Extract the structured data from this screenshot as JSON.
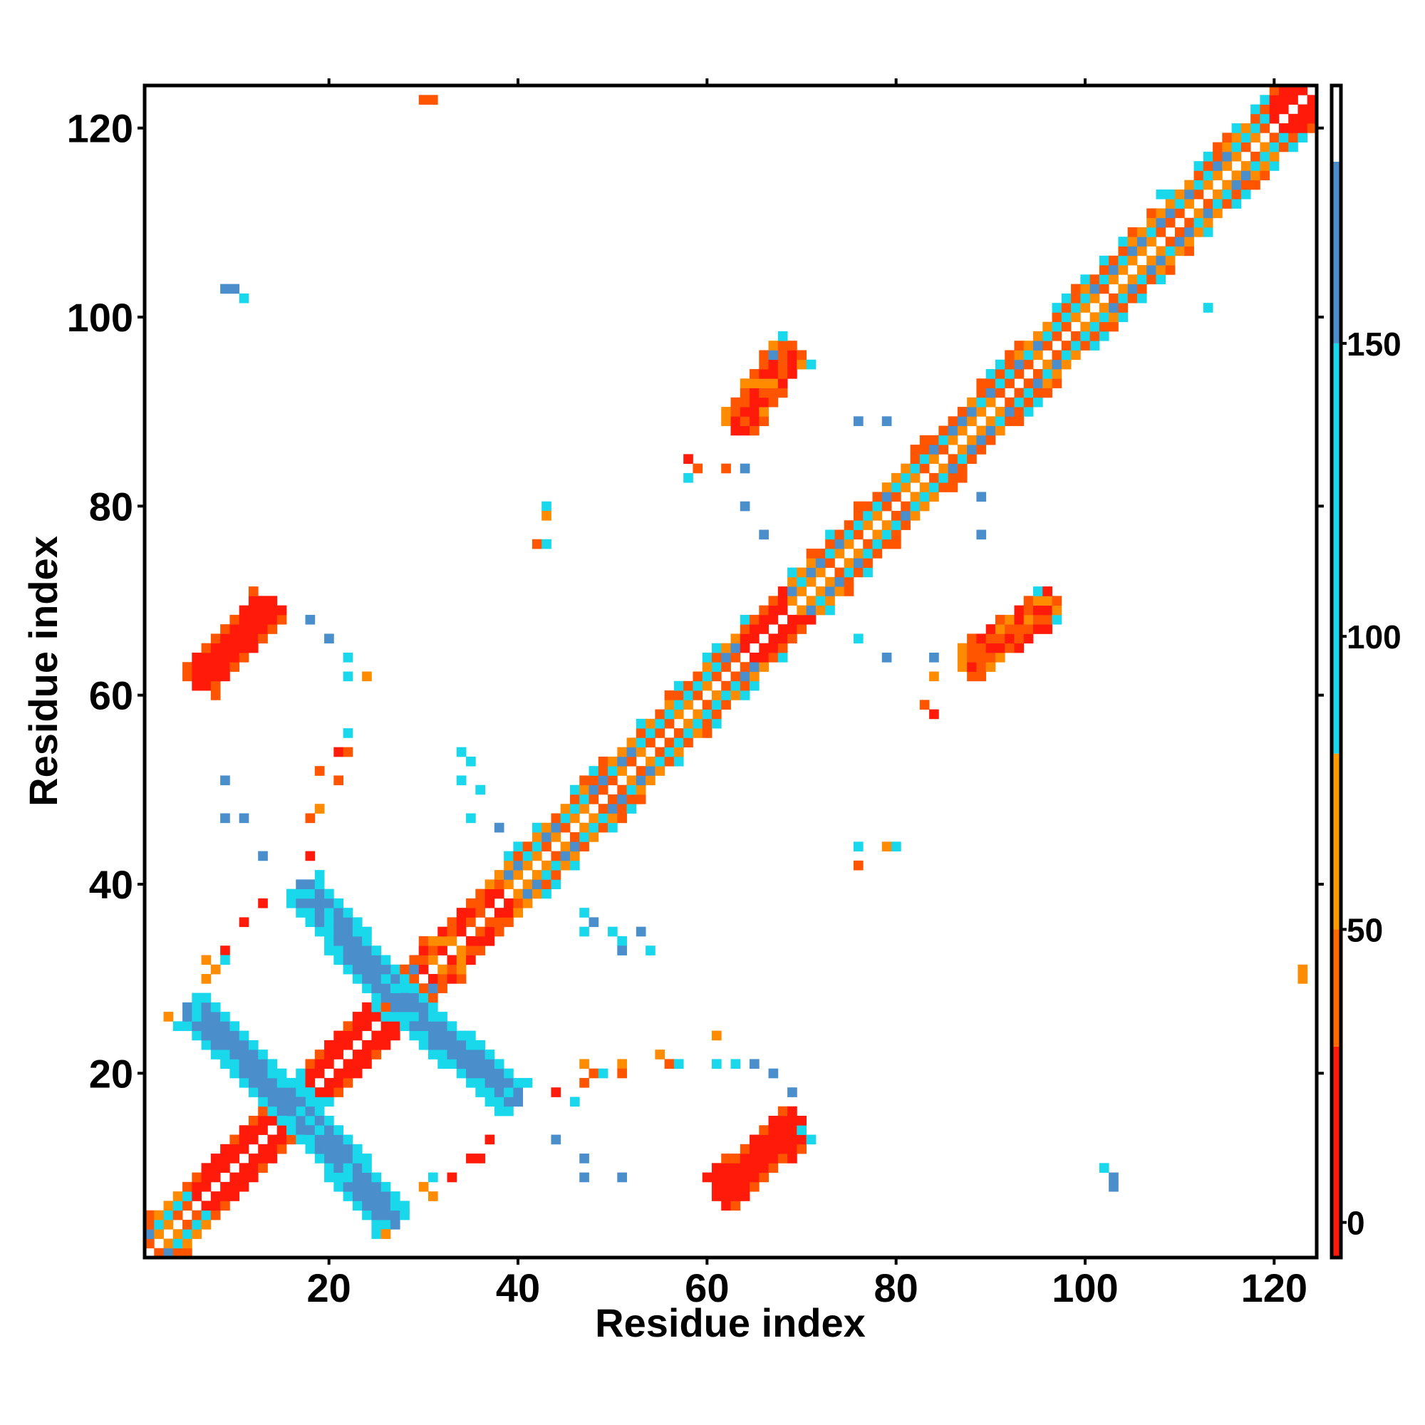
{
  "chart_data": {
    "type": "heatmap",
    "title": "",
    "xlabel": "Residue index",
    "ylabel": "Residue index",
    "xlim": [
      0.5,
      124.5
    ],
    "ylim": [
      0.5,
      124.5
    ],
    "x_ticks": [
      20,
      40,
      60,
      80,
      100,
      120
    ],
    "y_ticks": [
      20,
      40,
      60,
      80,
      100,
      120
    ],
    "colorbar": {
      "ticks": [
        0,
        50,
        100,
        150
      ],
      "range": [
        -6,
        194
      ],
      "bands": [
        {
          "from": -6,
          "to": 30,
          "color": "#ff1a0a"
        },
        {
          "from": 30,
          "to": 50,
          "color": "#ff6a00"
        },
        {
          "from": 50,
          "to": 80,
          "color": "#ff9a00"
        },
        {
          "from": 80,
          "to": 150,
          "color": "#19d8ec"
        },
        {
          "from": 150,
          "to": 181,
          "color": "#4a8fcc"
        },
        {
          "from": 181,
          "to": 194,
          "color": "#ffffff"
        }
      ]
    },
    "colors": {
      "red": "#ff1a0a",
      "red_orange": "#ff5500",
      "orange": "#ff8c00",
      "cyan": "#19d8ec",
      "steel_blue": "#4a8fcc"
    },
    "diagonal_segments": [
      {
        "x": [
          1,
          6
        ],
        "pattern": "cyan_orange"
      },
      {
        "x": [
          6,
          16
        ],
        "pattern": "red"
      },
      {
        "x": [
          16,
          18
        ],
        "pattern": "cyan"
      },
      {
        "x": [
          18,
          26
        ],
        "pattern": "red"
      },
      {
        "x": [
          26,
          30
        ],
        "pattern": "cyan_orange"
      },
      {
        "x": [
          30,
          39
        ],
        "pattern": "red_orange"
      },
      {
        "x": [
          39,
          58
        ],
        "pattern": "cyan_orange"
      },
      {
        "x": [
          58,
          64
        ],
        "pattern": "cyan_orange"
      },
      {
        "x": [
          64,
          69
        ],
        "pattern": "red"
      },
      {
        "x": [
          69,
          89
        ],
        "pattern": "cyan_orange"
      },
      {
        "x": [
          89,
          120
        ],
        "pattern": "cyan_orange"
      },
      {
        "x": [
          120,
          124
        ],
        "pattern": "red"
      }
    ],
    "antidiagonal_bands": [
      {
        "from": [
          5,
          27
        ],
        "to": [
          17,
          16
        ],
        "color": "steel_blue",
        "width": 2.2
      },
      {
        "from": [
          17,
          16
        ],
        "to": [
          27,
          4
        ],
        "color": "steel_blue",
        "width": 2.2
      },
      {
        "from": [
          17,
          40
        ],
        "to": [
          27,
          28
        ],
        "color": "steel_blue",
        "width": 2.2
      },
      {
        "from": [
          27,
          28
        ],
        "to": [
          40,
          17
        ],
        "color": "steel_blue",
        "width": 2.2
      }
    ],
    "parallel_bands": [
      {
        "from": [
          6,
          61
        ],
        "to": [
          14,
          70
        ],
        "color": "red",
        "width": 2.2
      },
      {
        "from": [
          61,
          7
        ],
        "to": [
          70,
          15
        ],
        "color": "red",
        "width": 2.4
      },
      {
        "from": [
          63,
          88
        ],
        "to": [
          69,
          97
        ],
        "color": "red_orange",
        "width": 2.0
      },
      {
        "from": [
          87,
          63
        ],
        "to": [
          97,
          70
        ],
        "color": "red_orange",
        "width": 2.0
      }
    ],
    "scattered_cells": [
      {
        "x": 30,
        "y": 123,
        "color": "red_orange"
      },
      {
        "x": 31,
        "y": 123,
        "color": "red_orange"
      },
      {
        "x": 9,
        "y": 103,
        "color": "steel_blue"
      },
      {
        "x": 10,
        "y": 103,
        "color": "steel_blue"
      },
      {
        "x": 11,
        "y": 102,
        "color": "cyan"
      },
      {
        "x": 18,
        "y": 68,
        "color": "steel_blue"
      },
      {
        "x": 20,
        "y": 66,
        "color": "steel_blue"
      },
      {
        "x": 22,
        "y": 64,
        "color": "cyan"
      },
      {
        "x": 22,
        "y": 62,
        "color": "cyan"
      },
      {
        "x": 24,
        "y": 62,
        "color": "orange"
      },
      {
        "x": 22,
        "y": 56,
        "color": "cyan"
      },
      {
        "x": 21,
        "y": 54,
        "color": "red"
      },
      {
        "x": 22,
        "y": 54,
        "color": "red_orange"
      },
      {
        "x": 19,
        "y": 52,
        "color": "red_orange"
      },
      {
        "x": 21,
        "y": 51,
        "color": "red_orange"
      },
      {
        "x": 19,
        "y": 48,
        "color": "orange"
      },
      {
        "x": 18,
        "y": 47,
        "color": "red_orange"
      },
      {
        "x": 9,
        "y": 51,
        "color": "steel_blue"
      },
      {
        "x": 9,
        "y": 47,
        "color": "steel_blue"
      },
      {
        "x": 11,
        "y": 47,
        "color": "steel_blue"
      },
      {
        "x": 13,
        "y": 43,
        "color": "steel_blue"
      },
      {
        "x": 18,
        "y": 43,
        "color": "red"
      },
      {
        "x": 13,
        "y": 38,
        "color": "red"
      },
      {
        "x": 11,
        "y": 36,
        "color": "red"
      },
      {
        "x": 9,
        "y": 33,
        "color": "red"
      },
      {
        "x": 7,
        "y": 32,
        "color": "orange"
      },
      {
        "x": 8,
        "y": 31,
        "color": "orange"
      },
      {
        "x": 9,
        "y": 32,
        "color": "cyan"
      },
      {
        "x": 7,
        "y": 30,
        "color": "orange"
      },
      {
        "x": 3,
        "y": 26,
        "color": "orange"
      },
      {
        "x": 26,
        "y": 3,
        "color": "orange"
      },
      {
        "x": 34,
        "y": 54,
        "color": "cyan"
      },
      {
        "x": 35,
        "y": 53,
        "color": "cyan"
      },
      {
        "x": 34,
        "y": 51,
        "color": "cyan"
      },
      {
        "x": 36,
        "y": 50,
        "color": "cyan"
      },
      {
        "x": 35,
        "y": 47,
        "color": "cyan"
      },
      {
        "x": 38,
        "y": 46,
        "color": "steel_blue"
      },
      {
        "x": 43,
        "y": 80,
        "color": "cyan"
      },
      {
        "x": 43,
        "y": 79,
        "color": "orange"
      },
      {
        "x": 42,
        "y": 76,
        "color": "red_orange"
      },
      {
        "x": 43,
        "y": 76,
        "color": "cyan"
      },
      {
        "x": 58,
        "y": 85,
        "color": "red"
      },
      {
        "x": 59,
        "y": 84,
        "color": "red_orange"
      },
      {
        "x": 62,
        "y": 84,
        "color": "red_orange"
      },
      {
        "x": 64,
        "y": 84,
        "color": "steel_blue"
      },
      {
        "x": 58,
        "y": 83,
        "color": "cyan"
      },
      {
        "x": 64,
        "y": 80,
        "color": "steel_blue"
      },
      {
        "x": 66,
        "y": 77,
        "color": "steel_blue"
      },
      {
        "x": 68,
        "y": 98,
        "color": "cyan"
      },
      {
        "x": 67,
        "y": 96,
        "color": "steel_blue"
      },
      {
        "x": 71,
        "y": 95,
        "color": "cyan"
      },
      {
        "x": 76,
        "y": 89,
        "color": "steel_blue"
      },
      {
        "x": 79,
        "y": 89,
        "color": "steel_blue"
      },
      {
        "x": 89,
        "y": 81,
        "color": "steel_blue"
      },
      {
        "x": 89,
        "y": 77,
        "color": "steel_blue"
      },
      {
        "x": 76,
        "y": 44,
        "color": "cyan"
      },
      {
        "x": 76,
        "y": 42,
        "color": "red_orange"
      },
      {
        "x": 79,
        "y": 44,
        "color": "orange"
      },
      {
        "x": 80,
        "y": 44,
        "color": "cyan"
      },
      {
        "x": 84,
        "y": 64,
        "color": "steel_blue"
      },
      {
        "x": 84,
        "y": 62,
        "color": "orange"
      },
      {
        "x": 83,
        "y": 59,
        "color": "red_orange"
      },
      {
        "x": 84,
        "y": 58,
        "color": "red"
      },
      {
        "x": 79,
        "y": 64,
        "color": "steel_blue"
      },
      {
        "x": 76,
        "y": 66,
        "color": "cyan"
      },
      {
        "x": 95,
        "y": 71,
        "color": "cyan"
      },
      {
        "x": 97,
        "y": 68,
        "color": "cyan"
      },
      {
        "x": 47,
        "y": 37,
        "color": "cyan"
      },
      {
        "x": 47,
        "y": 35,
        "color": "cyan"
      },
      {
        "x": 48,
        "y": 36,
        "color": "steel_blue"
      },
      {
        "x": 50,
        "y": 35,
        "color": "cyan"
      },
      {
        "x": 51,
        "y": 34,
        "color": "cyan"
      },
      {
        "x": 51,
        "y": 33,
        "color": "steel_blue"
      },
      {
        "x": 53,
        "y": 35,
        "color": "steel_blue"
      },
      {
        "x": 54,
        "y": 33,
        "color": "cyan"
      },
      {
        "x": 47,
        "y": 21,
        "color": "orange"
      },
      {
        "x": 48,
        "y": 20,
        "color": "red_orange"
      },
      {
        "x": 47,
        "y": 19,
        "color": "red_orange"
      },
      {
        "x": 49,
        "y": 20,
        "color": "cyan"
      },
      {
        "x": 51,
        "y": 21,
        "color": "orange"
      },
      {
        "x": 51,
        "y": 20,
        "color": "red_orange"
      },
      {
        "x": 55,
        "y": 22,
        "color": "orange"
      },
      {
        "x": 56,
        "y": 21,
        "color": "red_orange"
      },
      {
        "x": 57,
        "y": 21,
        "color": "cyan"
      },
      {
        "x": 61,
        "y": 24,
        "color": "orange"
      },
      {
        "x": 61,
        "y": 21,
        "color": "cyan"
      },
      {
        "x": 63,
        "y": 21,
        "color": "cyan"
      },
      {
        "x": 65,
        "y": 21,
        "color": "steel_blue"
      },
      {
        "x": 67,
        "y": 20,
        "color": "steel_blue"
      },
      {
        "x": 69,
        "y": 18,
        "color": "steel_blue"
      },
      {
        "x": 44,
        "y": 18,
        "color": "red"
      },
      {
        "x": 46,
        "y": 17,
        "color": "cyan"
      },
      {
        "x": 37,
        "y": 13,
        "color": "red"
      },
      {
        "x": 35,
        "y": 11,
        "color": "red"
      },
      {
        "x": 36,
        "y": 11,
        "color": "red"
      },
      {
        "x": 33,
        "y": 9,
        "color": "red"
      },
      {
        "x": 31,
        "y": 9,
        "color": "cyan"
      },
      {
        "x": 30,
        "y": 8,
        "color": "orange"
      },
      {
        "x": 31,
        "y": 7,
        "color": "orange"
      },
      {
        "x": 44,
        "y": 13,
        "color": "steel_blue"
      },
      {
        "x": 47,
        "y": 11,
        "color": "steel_blue"
      },
      {
        "x": 47,
        "y": 9,
        "color": "steel_blue"
      },
      {
        "x": 51,
        "y": 9,
        "color": "steel_blue"
      },
      {
        "x": 70,
        "y": 14,
        "color": "cyan"
      },
      {
        "x": 71,
        "y": 13,
        "color": "cyan"
      },
      {
        "x": 102,
        "y": 10,
        "color": "cyan"
      },
      {
        "x": 103,
        "y": 9,
        "color": "steel_blue"
      },
      {
        "x": 103,
        "y": 8,
        "color": "steel_blue"
      },
      {
        "x": 123,
        "y": 31,
        "color": "orange"
      },
      {
        "x": 123,
        "y": 30,
        "color": "orange"
      },
      {
        "x": 113,
        "y": 101,
        "color": "cyan"
      },
      {
        "x": 108,
        "y": 113,
        "color": "cyan"
      }
    ]
  }
}
